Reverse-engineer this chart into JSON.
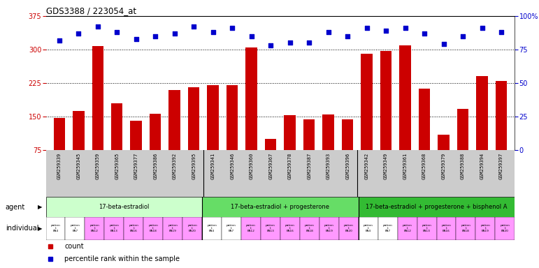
{
  "title": "GDS3388 / 223054_at",
  "samples": [
    "GSM259339",
    "GSM259345",
    "GSM259359",
    "GSM259365",
    "GSM259377",
    "GSM259386",
    "GSM259392",
    "GSM259395",
    "GSM259341",
    "GSM259346",
    "GSM259360",
    "GSM259367",
    "GSM259378",
    "GSM259387",
    "GSM259393",
    "GSM259396",
    "GSM259342",
    "GSM259349",
    "GSM259361",
    "GSM259368",
    "GSM259379",
    "GSM259388",
    "GSM259394",
    "GSM259397"
  ],
  "counts": [
    147,
    163,
    308,
    180,
    140,
    156,
    210,
    215,
    220,
    220,
    305,
    100,
    153,
    144,
    155,
    144,
    290,
    297,
    310,
    213,
    110,
    167,
    240,
    230
  ],
  "percentile_ranks": [
    82,
    87,
    92,
    88,
    83,
    85,
    87,
    92,
    88,
    91,
    85,
    78,
    80,
    80,
    88,
    85,
    91,
    89,
    91,
    87,
    79,
    85,
    91,
    88
  ],
  "bar_color": "#cc0000",
  "dot_color": "#0000cc",
  "agent_groups": [
    {
      "label": "17-beta-estradiol",
      "start": 0,
      "end": 8,
      "color": "#ccffcc"
    },
    {
      "label": "17-beta-estradiol + progesterone",
      "start": 8,
      "end": 16,
      "color": "#66dd66"
    },
    {
      "label": "17-beta-estradiol + progesterone + bisphenol A",
      "start": 16,
      "end": 24,
      "color": "#33bb33"
    }
  ],
  "individual_labels_short": [
    "patien\nt\nPA4",
    "patien\nt\nPA7",
    "patien\nt\nPA12",
    "patien\nt\nPA13",
    "patien\nt\nPA16",
    "patien\nt\nPA18",
    "patien\nt\nPA19",
    "patien\nt\nPA20",
    "patien\nt\nPA4",
    "patien\nt\nPA7",
    "patien\nt\nPA12",
    "patien\nt\nPA13",
    "patien\nt\nPA16",
    "patien\nt\nPA18",
    "patien\nt\nPA19",
    "patien\nt\nPA20",
    "patien\nt\nPA4",
    "patien\nt\nPA7",
    "patien\nt\nPA12",
    "patien\nt\nPA13",
    "patien\nt\nPA16",
    "patien\nt\nPA18",
    "patien\nt\nPA19",
    "patien\nt\nPA20"
  ],
  "individual_colors": [
    "#ffffff",
    "#ffffff",
    "#ff99ff",
    "#ff99ff",
    "#ff99ff",
    "#ff99ff",
    "#ff99ff",
    "#ff99ff",
    "#ffffff",
    "#ffffff",
    "#ff99ff",
    "#ff99ff",
    "#ff99ff",
    "#ff99ff",
    "#ff99ff",
    "#ff99ff",
    "#ffffff",
    "#ffffff",
    "#ff99ff",
    "#ff99ff",
    "#ff99ff",
    "#ff99ff",
    "#ff99ff",
    "#ff99ff"
  ],
  "ylim_left": [
    75,
    375
  ],
  "ylim_right": [
    0,
    100
  ],
  "yticks_left": [
    75,
    150,
    225,
    300,
    375
  ],
  "yticks_right": [
    0,
    25,
    50,
    75,
    100
  ],
  "left_color": "#cc0000",
  "right_color": "#0000cc",
  "gridline_vals": [
    150,
    225,
    300
  ],
  "fig_width": 7.71,
  "fig_height": 3.84,
  "dpi": 100
}
